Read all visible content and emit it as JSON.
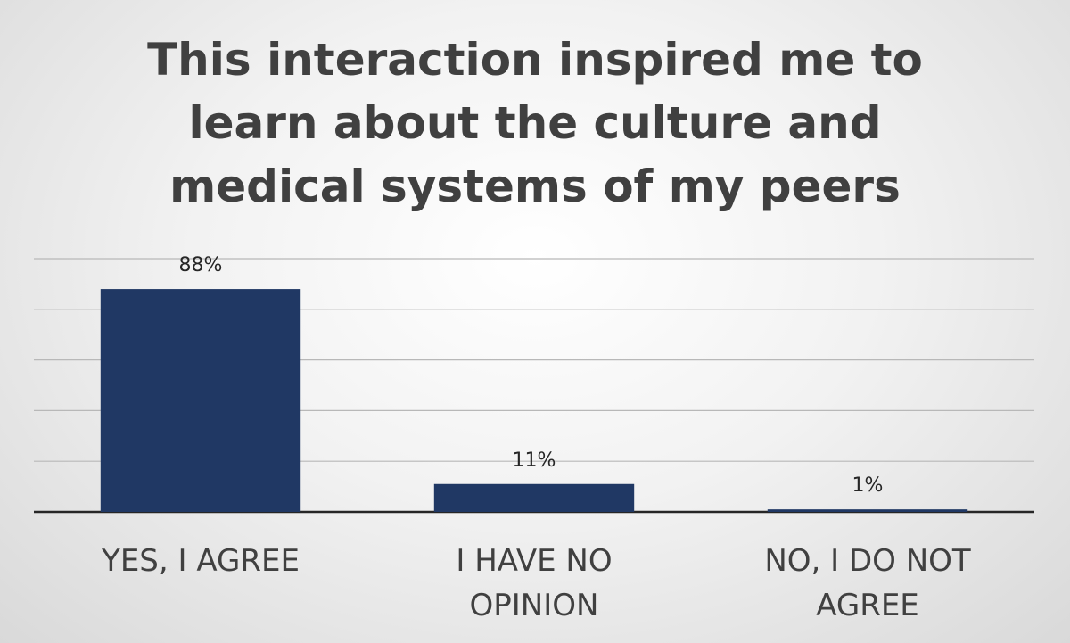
{
  "chart_data": {
    "type": "bar",
    "title": "This interaction inspired me to learn about the culture and medical systems of my peers",
    "categories": [
      "YES, I AGREE",
      "I HAVE NO OPINION",
      "NO, I DO NOT AGREE"
    ],
    "values": [
      88,
      11,
      1
    ],
    "value_labels": [
      "88%",
      "11%",
      "1%"
    ],
    "color": "#203864",
    "ylim": [
      0,
      100
    ],
    "yticks": [
      0,
      20,
      40,
      60,
      80,
      100
    ],
    "grid": true
  }
}
